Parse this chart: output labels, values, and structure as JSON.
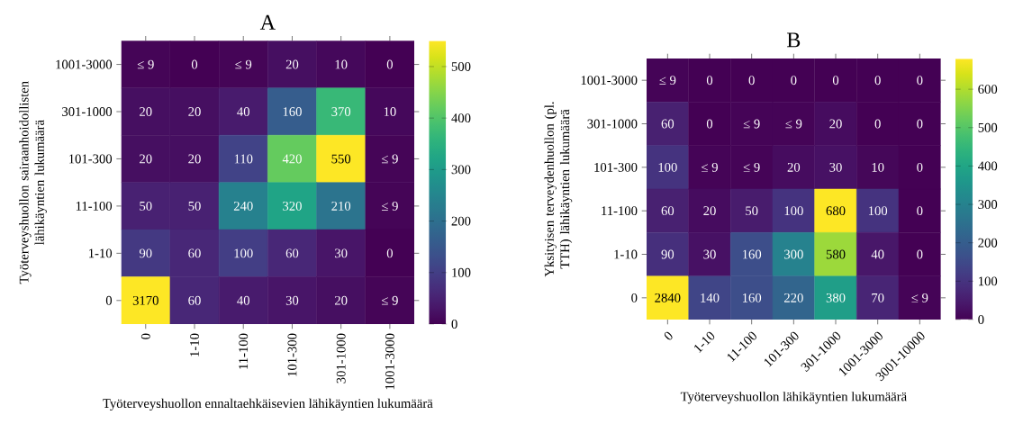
{
  "chart_data": [
    {
      "type": "heatmap",
      "title": "A",
      "xlabel": "Työterveyshuollon ennaltaehkäisevien lähikäyntien lukumäärä",
      "ylabel": "Työterveyshuollon sairaanhoidollisten lähikäyntien lukumäärä",
      "categories": [
        "0",
        "1-10",
        "11-100",
        "101-300",
        "301-1000",
        "1001-3000"
      ],
      "y_categories": [
        "1001-3000",
        "301-1000",
        "101-300",
        "11-100",
        "1-10",
        "0"
      ],
      "cells": [
        [
          5,
          0,
          5,
          20,
          10,
          0
        ],
        [
          20,
          20,
          40,
          160,
          370,
          10
        ],
        [
          20,
          20,
          110,
          420,
          550,
          5
        ],
        [
          50,
          50,
          240,
          320,
          210,
          5
        ],
        [
          90,
          60,
          100,
          60,
          30,
          0
        ],
        [
          3170,
          60,
          40,
          30,
          20,
          5
        ]
      ],
      "cell_labels": [
        [
          "≤ 9",
          "0",
          "≤ 9",
          "20",
          "10",
          "0"
        ],
        [
          "20",
          "20",
          "40",
          "160",
          "370",
          "10"
        ],
        [
          "20",
          "20",
          "110",
          "420",
          "550",
          "≤ 9"
        ],
        [
          "50",
          "50",
          "240",
          "320",
          "210",
          "≤ 9"
        ],
        [
          "90",
          "60",
          "100",
          "60",
          "30",
          "0"
        ],
        [
          "3170",
          "60",
          "40",
          "30",
          "20",
          "≤ 9"
        ]
      ],
      "clim": [
        0,
        550
      ],
      "cticks": [
        0,
        100,
        200,
        300,
        400,
        500
      ]
    },
    {
      "type": "heatmap",
      "title": "B",
      "xlabel": "Työterveyshuollon lähikäyntien lukumäärä",
      "ylabel": "Yksityisen terveydenhuollon (pl. TTH) lähikäyntien lukumäärä",
      "categories": [
        "0",
        "1-10",
        "11-100",
        "101-300",
        "301-1000",
        "1001-3000",
        "3001-10000"
      ],
      "y_categories": [
        "1001-3000",
        "301-1000",
        "101-300",
        "11-100",
        "1-10",
        "0"
      ],
      "cells": [
        [
          5,
          0,
          0,
          0,
          0,
          0,
          0
        ],
        [
          60,
          0,
          5,
          5,
          20,
          0,
          0
        ],
        [
          100,
          5,
          5,
          20,
          30,
          10,
          0
        ],
        [
          60,
          20,
          50,
          100,
          680,
          100,
          0
        ],
        [
          90,
          30,
          160,
          300,
          580,
          40,
          0
        ],
        [
          2840,
          140,
          160,
          220,
          380,
          70,
          5
        ]
      ],
      "cell_labels": [
        [
          "≤ 9",
          "0",
          "0",
          "0",
          "0",
          "0",
          "0"
        ],
        [
          "60",
          "0",
          "≤ 9",
          "≤ 9",
          "20",
          "0",
          "0"
        ],
        [
          "100",
          "≤ 9",
          "≤ 9",
          "20",
          "30",
          "10",
          "0"
        ],
        [
          "60",
          "20",
          "50",
          "100",
          "680",
          "100",
          "0"
        ],
        [
          "90",
          "30",
          "160",
          "300",
          "580",
          "40",
          "0"
        ],
        [
          "2840",
          "140",
          "160",
          "220",
          "380",
          "70",
          "≤ 9"
        ]
      ],
      "clim": [
        0,
        680
      ],
      "cticks": [
        0,
        100,
        200,
        300,
        400,
        500,
        600
      ]
    }
  ]
}
